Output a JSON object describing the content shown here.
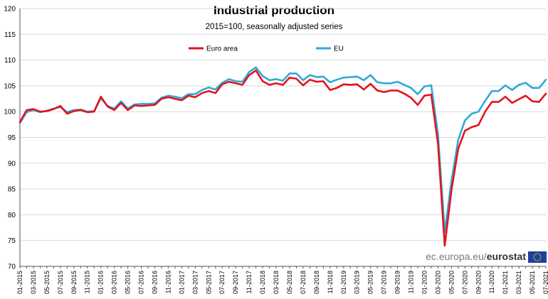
{
  "chart_data": {
    "type": "line",
    "title": "Industrial production",
    "subtitle": "2015=100,  seasonally adjusted series",
    "ylim": [
      70,
      120
    ],
    "yticks": [
      70,
      75,
      80,
      85,
      90,
      95,
      100,
      105,
      110,
      115,
      120
    ],
    "grid": "horizontal",
    "legend_position": "top",
    "x_labels": [
      "01-2015",
      "03-2015",
      "05-2015",
      "07-2015",
      "09-2015",
      "11-2015",
      "01-2016",
      "03-2016",
      "05-2016",
      "07-2016",
      "09-2016",
      "11-2016",
      "01-2017",
      "03-2017",
      "05-2017",
      "07-2017",
      "09-2017",
      "11-2017",
      "01-2018",
      "03-2018",
      "05-2018",
      "07-2018",
      "09-2018",
      "11-2018",
      "01-2019",
      "03-2019",
      "05-2019",
      "07-2019",
      "09-2019",
      "11-2019",
      "01-2020",
      "03-2020",
      "05-2020",
      "07-2020",
      "09-2020",
      "11-2020",
      "01-2021",
      "03-2021",
      "05-2021",
      "07-2021"
    ],
    "x_start": "01-2015",
    "x_count": 79,
    "series": [
      {
        "name": "Euro area",
        "color": "#e3141c",
        "values": [
          98.0,
          100.3,
          100.5,
          100.0,
          100.1,
          100.5,
          101.1,
          99.6,
          100.1,
          100.3,
          99.9,
          100.0,
          102.9,
          101.0,
          100.3,
          101.7,
          100.3,
          101.2,
          101.1,
          101.2,
          101.3,
          102.5,
          102.8,
          102.5,
          102.2,
          103.1,
          102.8,
          103.6,
          104.0,
          103.6,
          105.3,
          105.8,
          105.5,
          105.2,
          107.1,
          108.0,
          105.9,
          105.2,
          105.5,
          105.2,
          106.6,
          106.4,
          105.1,
          106.2,
          105.8,
          105.9,
          104.2,
          104.6,
          105.3,
          105.2,
          105.3,
          104.3,
          105.4,
          104.1,
          103.8,
          104.1,
          104.1,
          103.5,
          102.7,
          101.3,
          103.1,
          103.3,
          93.8,
          74.0,
          84.8,
          92.8,
          96.3,
          97.0,
          97.4,
          100.0,
          101.9,
          101.9,
          102.9,
          101.7,
          102.4,
          103.1,
          102.0,
          101.9,
          103.5
        ]
      },
      {
        "name": "EU",
        "color": "#2eaad8",
        "values": [
          97.8,
          99.9,
          100.3,
          99.9,
          100.2,
          100.6,
          100.9,
          99.9,
          100.3,
          100.4,
          100.0,
          100.1,
          102.6,
          101.1,
          100.6,
          102.0,
          100.6,
          101.4,
          101.5,
          101.5,
          101.6,
          102.7,
          103.1,
          102.9,
          102.6,
          103.4,
          103.4,
          104.2,
          104.7,
          104.3,
          105.6,
          106.3,
          105.9,
          105.8,
          107.7,
          108.6,
          106.9,
          106.1,
          106.3,
          106.0,
          107.4,
          107.4,
          106.1,
          107.1,
          106.7,
          106.8,
          105.7,
          106.2,
          106.6,
          106.7,
          106.8,
          106.1,
          107.1,
          105.7,
          105.5,
          105.5,
          105.8,
          105.2,
          104.6,
          103.4,
          104.9,
          105.1,
          95.6,
          76.6,
          86.6,
          94.5,
          98.3,
          99.6,
          100.0,
          102.1,
          104.0,
          104.0,
          105.1,
          104.2,
          105.2,
          105.6,
          104.6,
          104.6,
          106.2
        ]
      }
    ]
  },
  "source": {
    "prefix": "ec.europa.eu/",
    "bold": "eurostat"
  }
}
